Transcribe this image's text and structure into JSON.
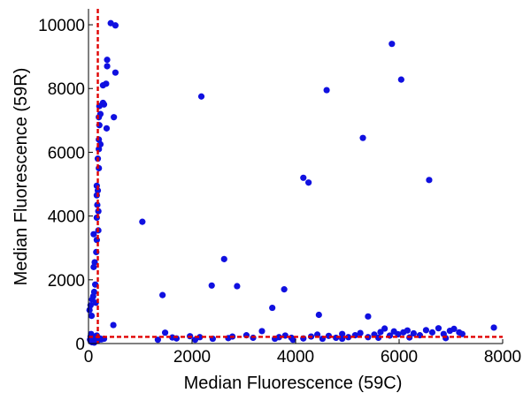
{
  "chart_data": {
    "type": "scatter",
    "xlabel": "Median Fluorescence (59C)",
    "ylabel": "Median Fluorescence (59R)",
    "xlim": [
      0,
      8000
    ],
    "ylim": [
      0,
      10500
    ],
    "xticks": [
      0,
      2000,
      4000,
      6000,
      8000
    ],
    "yticks": [
      0,
      2000,
      4000,
      6000,
      8000,
      10000
    ],
    "grid": false,
    "point_color": "#1010e0",
    "threshold_color": "#e00000",
    "thresholds": {
      "x": 180,
      "y": 210
    },
    "points": [
      [
        30,
        120
      ],
      [
        60,
        80
      ],
      [
        80,
        150
      ],
      [
        100,
        60
      ],
      [
        120,
        200
      ],
      [
        140,
        110
      ],
      [
        160,
        250
      ],
      [
        50,
        300
      ],
      [
        90,
        180
      ],
      [
        130,
        90
      ],
      [
        170,
        140
      ],
      [
        200,
        120
      ],
      [
        40,
        220
      ],
      [
        70,
        40
      ],
      [
        110,
        30
      ],
      [
        150,
        170
      ],
      [
        180,
        100
      ],
      [
        220,
        160
      ],
      [
        250,
        130
      ],
      [
        300,
        150
      ],
      [
        60,
        870
      ],
      [
        40,
        1200
      ],
      [
        70,
        1380
      ],
      [
        90,
        1480
      ],
      [
        110,
        1620
      ],
      [
        140,
        1280
      ],
      [
        20,
        1050
      ],
      [
        130,
        1850
      ],
      [
        100,
        2400
      ],
      [
        120,
        2550
      ],
      [
        150,
        2870
      ],
      [
        160,
        3250
      ],
      [
        100,
        3430
      ],
      [
        190,
        3550
      ],
      [
        160,
        3950
      ],
      [
        190,
        4150
      ],
      [
        170,
        4350
      ],
      [
        160,
        4650
      ],
      [
        180,
        4800
      ],
      [
        160,
        4950
      ],
      [
        200,
        5500
      ],
      [
        180,
        5800
      ],
      [
        200,
        6100
      ],
      [
        230,
        6250
      ],
      [
        200,
        6400
      ],
      [
        210,
        6850
      ],
      [
        200,
        7100
      ],
      [
        230,
        7200
      ],
      [
        210,
        7450
      ],
      [
        280,
        7550
      ],
      [
        300,
        7500
      ],
      [
        280,
        8100
      ],
      [
        340,
        8150
      ],
      [
        360,
        8900
      ],
      [
        360,
        8700
      ],
      [
        520,
        8500
      ],
      [
        350,
        6750
      ],
      [
        490,
        7100
      ],
      [
        430,
        10050
      ],
      [
        520,
        9980
      ],
      [
        1040,
        3820
      ],
      [
        1430,
        1520
      ],
      [
        2180,
        7750
      ],
      [
        2380,
        1820
      ],
      [
        2620,
        2650
      ],
      [
        2870,
        1800
      ],
      [
        3550,
        1120
      ],
      [
        3780,
        1700
      ],
      [
        4150,
        5200
      ],
      [
        4250,
        5050
      ],
      [
        4450,
        900
      ],
      [
        4600,
        7950
      ],
      [
        5300,
        6450
      ],
      [
        5400,
        850
      ],
      [
        5860,
        9400
      ],
      [
        6040,
        8280
      ],
      [
        6580,
        5130
      ],
      [
        7830,
        500
      ],
      [
        480,
        580
      ],
      [
        1340,
        120
      ],
      [
        1480,
        340
      ],
      [
        1700,
        160
      ],
      [
        1960,
        230
      ],
      [
        2060,
        120
      ],
      [
        2150,
        200
      ],
      [
        2700,
        170
      ],
      [
        3050,
        260
      ],
      [
        3350,
        390
      ],
      [
        3680,
        200
      ],
      [
        3800,
        250
      ],
      [
        3920,
        180
      ],
      [
        4150,
        160
      ],
      [
        4300,
        220
      ],
      [
        4420,
        280
      ],
      [
        4520,
        150
      ],
      [
        4640,
        240
      ],
      [
        4780,
        180
      ],
      [
        4900,
        300
      ],
      [
        5020,
        200
      ],
      [
        5150,
        260
      ],
      [
        5250,
        330
      ],
      [
        5400,
        200
      ],
      [
        5520,
        280
      ],
      [
        5640,
        360
      ],
      [
        5720,
        470
      ],
      [
        5820,
        250
      ],
      [
        5900,
        380
      ],
      [
        5980,
        290
      ],
      [
        6080,
        350
      ],
      [
        6160,
        410
      ],
      [
        6280,
        320
      ],
      [
        6400,
        260
      ],
      [
        6520,
        420
      ],
      [
        6640,
        350
      ],
      [
        6760,
        480
      ],
      [
        6860,
        300
      ],
      [
        6980,
        400
      ],
      [
        7060,
        460
      ],
      [
        7160,
        350
      ],
      [
        7220,
        300
      ],
      [
        3180,
        180
      ],
      [
        3950,
        120
      ],
      [
        2400,
        150
      ],
      [
        1620,
        190
      ],
      [
        2780,
        220
      ],
      [
        3600,
        150
      ],
      [
        4900,
        150
      ],
      [
        5600,
        180
      ],
      [
        6200,
        190
      ],
      [
        6900,
        170
      ]
    ]
  }
}
